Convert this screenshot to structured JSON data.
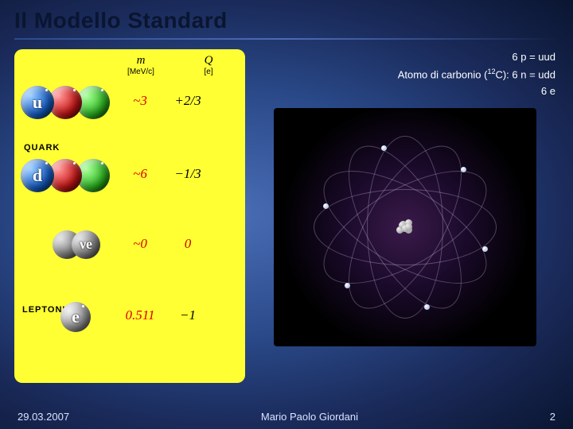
{
  "title": "Il Modello Standard",
  "columns": {
    "mass": {
      "symbol": "m",
      "unit": "[MeV/c]"
    },
    "charge": {
      "symbol": "Q",
      "unit": "[e]"
    }
  },
  "sections": {
    "quark": "QUARK",
    "leptoni": "LEPTONI"
  },
  "particles": {
    "up": {
      "label": "u",
      "mass": "~3",
      "charge": "+2/3",
      "charge_color": "#000000"
    },
    "down": {
      "label": "d",
      "mass": "~6",
      "charge": "−1/3",
      "charge_color": "#000000"
    },
    "nu_e": {
      "label": "νe",
      "mass": "~0",
      "charge": "0",
      "charge_color": "#cc0000"
    },
    "e": {
      "label": "e",
      "mass": "0.511",
      "charge": "−1",
      "charge_color": "#000000"
    }
  },
  "atom_caption": {
    "prefix": "Atomo di carbonio (",
    "isotope_sup": "12",
    "isotope": "C):",
    "lines": [
      "6 p = uud",
      "6 n = udd",
      "6 e"
    ]
  },
  "atom_figure": {
    "orbit_count": 6,
    "orbit_rx": 115,
    "orbit_ry": 48,
    "electron_count": 6,
    "nucleus_particles": 12
  },
  "footer": {
    "date": "29.03.2007",
    "author": "Mario Paolo Giordani",
    "page": "2"
  },
  "colors": {
    "mass_value": "#cc0000",
    "panel_bg": "#ffff33",
    "bg_gradient": [
      "#4a6db5",
      "#2a4a8a",
      "#1a2a5a",
      "#0a1530"
    ]
  }
}
